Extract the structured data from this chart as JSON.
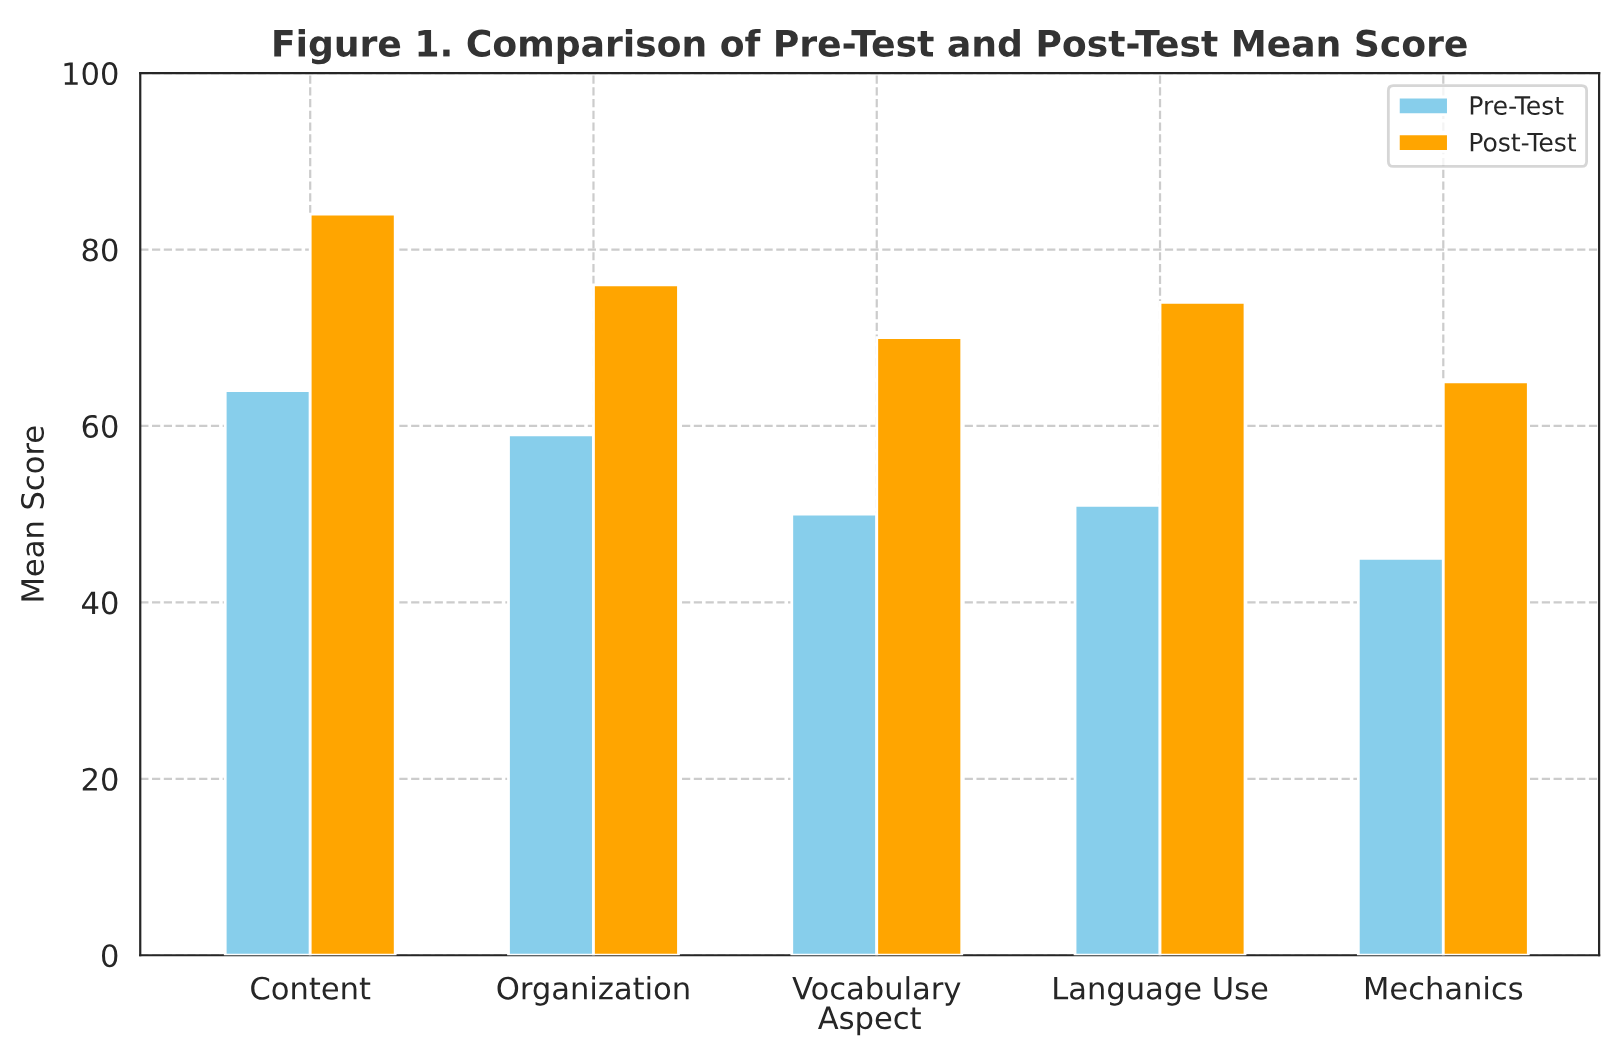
{
  "chart_data": {
    "type": "bar",
    "title": "Figure 1. Comparison of Pre-Test and Post-Test Mean Score",
    "xlabel": "Aspect",
    "ylabel": "Mean Score",
    "categories": [
      "Content",
      "Organization",
      "Vocabulary",
      "Language Use",
      "Mechanics"
    ],
    "series": [
      {
        "name": "Pre-Test",
        "color": "#87ceeb",
        "values": [
          64,
          59,
          50,
          51,
          45
        ]
      },
      {
        "name": "Post-Test",
        "color": "#ffa500",
        "values": [
          84,
          76,
          70,
          74,
          65
        ]
      }
    ],
    "ylim": [
      0,
      100
    ],
    "yticks": [
      0,
      20,
      40,
      60,
      80,
      100
    ],
    "grid": true,
    "line_style": "dashed",
    "legend": "top right"
  }
}
